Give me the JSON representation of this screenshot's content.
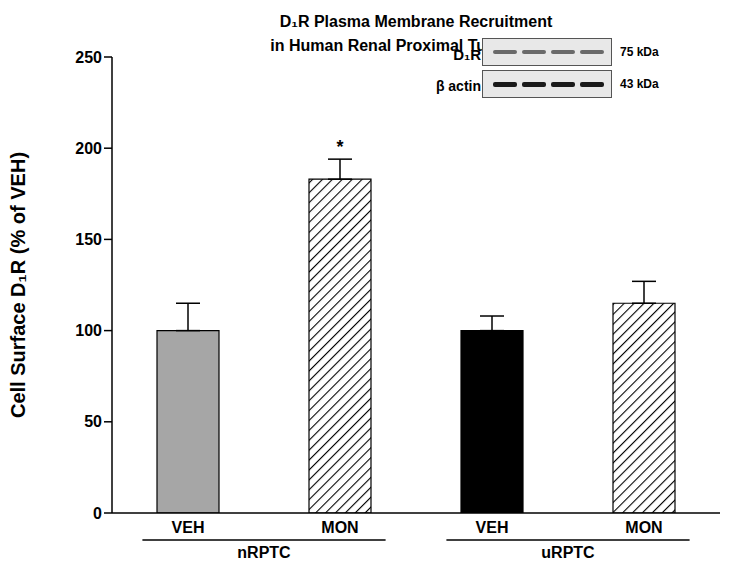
{
  "chart_data": {
    "type": "bar",
    "title": [
      "D₁R Plasma Membrane Recruitment",
      "in Human Renal Proximal Tubule Cells"
    ],
    "y_label": "Cell Surface D₁R (% of VEH)",
    "categories": [
      "VEH",
      "MON",
      "VEH",
      "MON"
    ],
    "groups": [
      "nRPTC",
      "uRPTC"
    ],
    "values": [
      100,
      183,
      100,
      115
    ],
    "errors": [
      15,
      11,
      8,
      12
    ],
    "colors": [
      "#a6a6a6",
      "#ffffff",
      "#000000",
      "#ffffff"
    ],
    "ylim": [
      0,
      250
    ],
    "yticks": [
      0,
      50,
      100,
      150,
      200,
      250
    ],
    "grid": false,
    "annotations": [
      {
        "text": "*",
        "index": 1
      }
    ],
    "inset": {
      "rows": [
        {
          "label": "D₁R",
          "size": "75 kDa"
        },
        {
          "label": "β actin",
          "size": "43 kDa"
        }
      ]
    }
  }
}
